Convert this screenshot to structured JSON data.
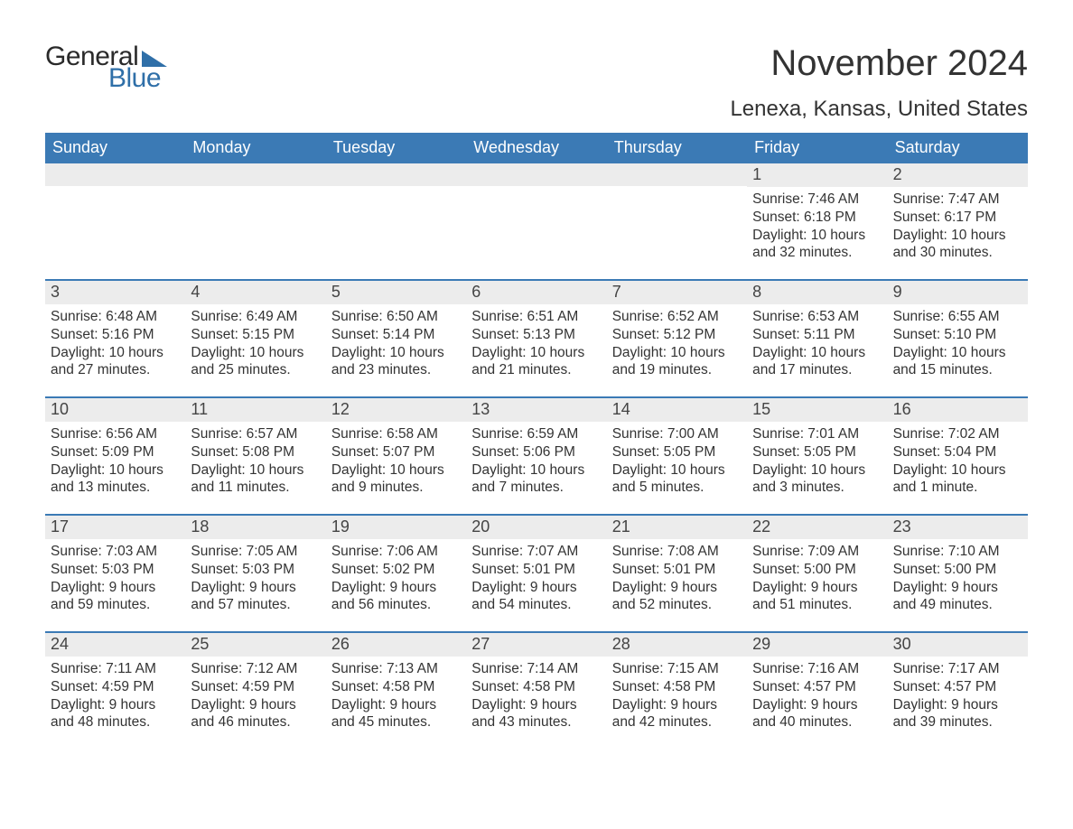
{
  "colors": {
    "header_bg": "#3b7ab5",
    "header_text": "#ffffff",
    "daynum_bg": "#ececec",
    "body_text": "#333333",
    "logo_accent": "#2f6fa8",
    "row_border": "#3b7ab5",
    "page_bg": "#ffffff"
  },
  "typography": {
    "title_fontsize_pt": 30,
    "location_fontsize_pt": 18,
    "weekday_fontsize_pt": 14,
    "cell_fontsize_pt": 12
  },
  "logo": {
    "word1": "General",
    "word2": "Blue"
  },
  "title": "November 2024",
  "location": "Lenexa, Kansas, United States",
  "weekdays": [
    "Sunday",
    "Monday",
    "Tuesday",
    "Wednesday",
    "Thursday",
    "Friday",
    "Saturday"
  ],
  "weeks": [
    [
      null,
      null,
      null,
      null,
      null,
      {
        "num": "1",
        "sunrise": "Sunrise: 7:46 AM",
        "sunset": "Sunset: 6:18 PM",
        "daylight": "Daylight: 10 hours and 32 minutes."
      },
      {
        "num": "2",
        "sunrise": "Sunrise: 7:47 AM",
        "sunset": "Sunset: 6:17 PM",
        "daylight": "Daylight: 10 hours and 30 minutes."
      }
    ],
    [
      {
        "num": "3",
        "sunrise": "Sunrise: 6:48 AM",
        "sunset": "Sunset: 5:16 PM",
        "daylight": "Daylight: 10 hours and 27 minutes."
      },
      {
        "num": "4",
        "sunrise": "Sunrise: 6:49 AM",
        "sunset": "Sunset: 5:15 PM",
        "daylight": "Daylight: 10 hours and 25 minutes."
      },
      {
        "num": "5",
        "sunrise": "Sunrise: 6:50 AM",
        "sunset": "Sunset: 5:14 PM",
        "daylight": "Daylight: 10 hours and 23 minutes."
      },
      {
        "num": "6",
        "sunrise": "Sunrise: 6:51 AM",
        "sunset": "Sunset: 5:13 PM",
        "daylight": "Daylight: 10 hours and 21 minutes."
      },
      {
        "num": "7",
        "sunrise": "Sunrise: 6:52 AM",
        "sunset": "Sunset: 5:12 PM",
        "daylight": "Daylight: 10 hours and 19 minutes."
      },
      {
        "num": "8",
        "sunrise": "Sunrise: 6:53 AM",
        "sunset": "Sunset: 5:11 PM",
        "daylight": "Daylight: 10 hours and 17 minutes."
      },
      {
        "num": "9",
        "sunrise": "Sunrise: 6:55 AM",
        "sunset": "Sunset: 5:10 PM",
        "daylight": "Daylight: 10 hours and 15 minutes."
      }
    ],
    [
      {
        "num": "10",
        "sunrise": "Sunrise: 6:56 AM",
        "sunset": "Sunset: 5:09 PM",
        "daylight": "Daylight: 10 hours and 13 minutes."
      },
      {
        "num": "11",
        "sunrise": "Sunrise: 6:57 AM",
        "sunset": "Sunset: 5:08 PM",
        "daylight": "Daylight: 10 hours and 11 minutes."
      },
      {
        "num": "12",
        "sunrise": "Sunrise: 6:58 AM",
        "sunset": "Sunset: 5:07 PM",
        "daylight": "Daylight: 10 hours and 9 minutes."
      },
      {
        "num": "13",
        "sunrise": "Sunrise: 6:59 AM",
        "sunset": "Sunset: 5:06 PM",
        "daylight": "Daylight: 10 hours and 7 minutes."
      },
      {
        "num": "14",
        "sunrise": "Sunrise: 7:00 AM",
        "sunset": "Sunset: 5:05 PM",
        "daylight": "Daylight: 10 hours and 5 minutes."
      },
      {
        "num": "15",
        "sunrise": "Sunrise: 7:01 AM",
        "sunset": "Sunset: 5:05 PM",
        "daylight": "Daylight: 10 hours and 3 minutes."
      },
      {
        "num": "16",
        "sunrise": "Sunrise: 7:02 AM",
        "sunset": "Sunset: 5:04 PM",
        "daylight": "Daylight: 10 hours and 1 minute."
      }
    ],
    [
      {
        "num": "17",
        "sunrise": "Sunrise: 7:03 AM",
        "sunset": "Sunset: 5:03 PM",
        "daylight": "Daylight: 9 hours and 59 minutes."
      },
      {
        "num": "18",
        "sunrise": "Sunrise: 7:05 AM",
        "sunset": "Sunset: 5:03 PM",
        "daylight": "Daylight: 9 hours and 57 minutes."
      },
      {
        "num": "19",
        "sunrise": "Sunrise: 7:06 AM",
        "sunset": "Sunset: 5:02 PM",
        "daylight": "Daylight: 9 hours and 56 minutes."
      },
      {
        "num": "20",
        "sunrise": "Sunrise: 7:07 AM",
        "sunset": "Sunset: 5:01 PM",
        "daylight": "Daylight: 9 hours and 54 minutes."
      },
      {
        "num": "21",
        "sunrise": "Sunrise: 7:08 AM",
        "sunset": "Sunset: 5:01 PM",
        "daylight": "Daylight: 9 hours and 52 minutes."
      },
      {
        "num": "22",
        "sunrise": "Sunrise: 7:09 AM",
        "sunset": "Sunset: 5:00 PM",
        "daylight": "Daylight: 9 hours and 51 minutes."
      },
      {
        "num": "23",
        "sunrise": "Sunrise: 7:10 AM",
        "sunset": "Sunset: 5:00 PM",
        "daylight": "Daylight: 9 hours and 49 minutes."
      }
    ],
    [
      {
        "num": "24",
        "sunrise": "Sunrise: 7:11 AM",
        "sunset": "Sunset: 4:59 PM",
        "daylight": "Daylight: 9 hours and 48 minutes."
      },
      {
        "num": "25",
        "sunrise": "Sunrise: 7:12 AM",
        "sunset": "Sunset: 4:59 PM",
        "daylight": "Daylight: 9 hours and 46 minutes."
      },
      {
        "num": "26",
        "sunrise": "Sunrise: 7:13 AM",
        "sunset": "Sunset: 4:58 PM",
        "daylight": "Daylight: 9 hours and 45 minutes."
      },
      {
        "num": "27",
        "sunrise": "Sunrise: 7:14 AM",
        "sunset": "Sunset: 4:58 PM",
        "daylight": "Daylight: 9 hours and 43 minutes."
      },
      {
        "num": "28",
        "sunrise": "Sunrise: 7:15 AM",
        "sunset": "Sunset: 4:58 PM",
        "daylight": "Daylight: 9 hours and 42 minutes."
      },
      {
        "num": "29",
        "sunrise": "Sunrise: 7:16 AM",
        "sunset": "Sunset: 4:57 PM",
        "daylight": "Daylight: 9 hours and 40 minutes."
      },
      {
        "num": "30",
        "sunrise": "Sunrise: 7:17 AM",
        "sunset": "Sunset: 4:57 PM",
        "daylight": "Daylight: 9 hours and 39 minutes."
      }
    ]
  ]
}
